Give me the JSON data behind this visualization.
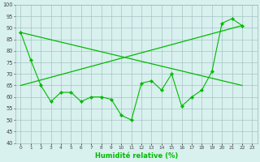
{
  "x": [
    0,
    1,
    2,
    3,
    4,
    5,
    6,
    7,
    8,
    9,
    10,
    11,
    12,
    13,
    14,
    15,
    16,
    17,
    18,
    19,
    20,
    21,
    22,
    23
  ],
  "series1_y": [
    88,
    76,
    65,
    58,
    62,
    62,
    58,
    60,
    60,
    59,
    52,
    50,
    66,
    67,
    63,
    70,
    56,
    60,
    63,
    71,
    92,
    94,
    91
  ],
  "series1_x": [
    0,
    1,
    2,
    3,
    4,
    5,
    6,
    7,
    8,
    9,
    10,
    11,
    12,
    13,
    14,
    15,
    16,
    17,
    18,
    19,
    20,
    21,
    22
  ],
  "series2_x": [
    0,
    22
  ],
  "series2_y": [
    88,
    65
  ],
  "series3_x": [
    0,
    22
  ],
  "series3_y": [
    65,
    91
  ],
  "line_color": "#00bb00",
  "bg_color": "#d8f0ee",
  "grid_color": "#99bbbb",
  "xlabel": "Humidité relative (%)",
  "ylim": [
    40,
    100
  ],
  "xlim": [
    -0.5,
    23.5
  ],
  "yticks": [
    40,
    45,
    50,
    55,
    60,
    65,
    70,
    75,
    80,
    85,
    90,
    95,
    100
  ],
  "xtick_labels": [
    "0",
    "1",
    "2",
    "3",
    "4",
    "5",
    "6",
    "7",
    "8",
    "9",
    "10",
    "11",
    "12",
    "13",
    "14",
    "15",
    "16",
    "17",
    "18",
    "19",
    "20",
    "21",
    "22",
    "23"
  ]
}
